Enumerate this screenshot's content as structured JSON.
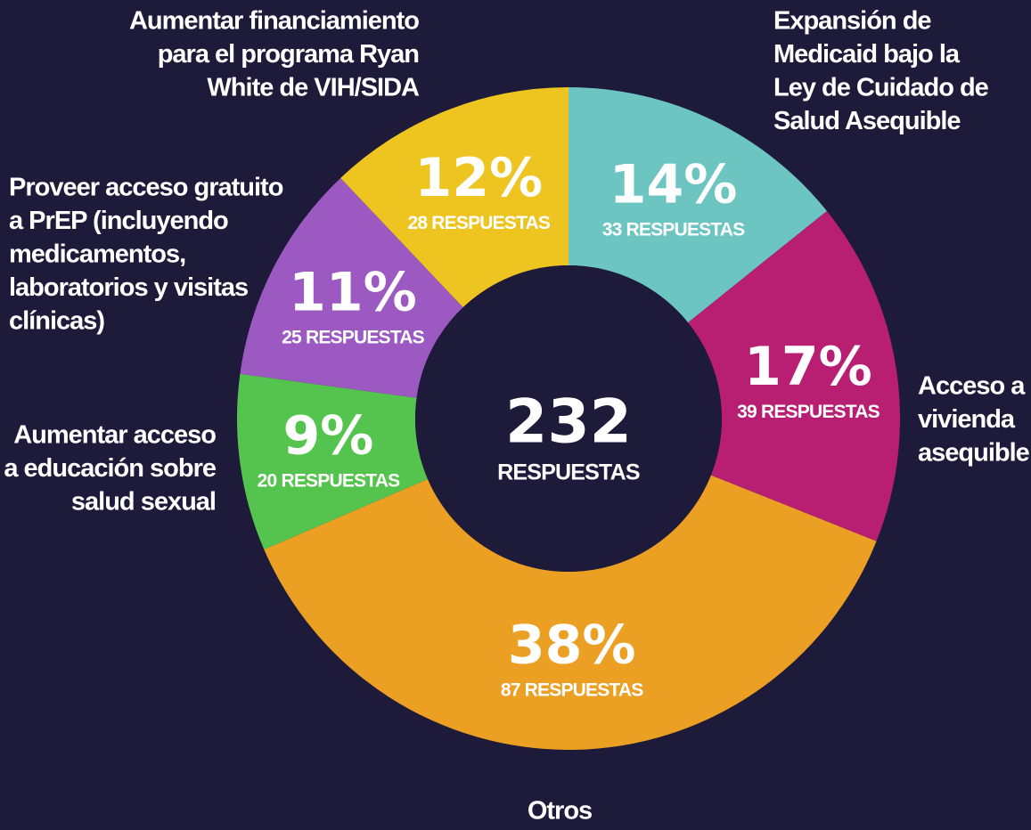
{
  "chart_data": {
    "type": "donut",
    "labels": [
      [
        "Expansión de",
        "Medicaid bajo la",
        "Ley de Cuidado de",
        "Salud Asequible"
      ],
      [
        "Acceso a",
        "vivienda",
        "asequible"
      ],
      [
        "Otros"
      ],
      [
        "Aumentar acceso",
        "a educación sobre",
        "salud sexual"
      ],
      [
        "Proveer acceso gratuito",
        "a PrEP (incluyendo",
        "medicamentos,",
        "laboratorios y visitas",
        "clínicas)"
      ],
      [
        "Aumentar financiamiento",
        "para el programa Ryan",
        "White de VIH/SIDA"
      ]
    ],
    "values": [
      14,
      17,
      38,
      9,
      11,
      12
    ],
    "value_labels": [
      "14%",
      "17%",
      "38%",
      "9%",
      "11%",
      "12%"
    ],
    "counts": [
      33,
      39,
      87,
      20,
      25,
      28
    ],
    "count_labels": [
      "33 RESPUESTAS",
      "39 RESPUESTAS",
      "87 RESPUESTAS",
      "20 RESPUESTAS",
      "25 RESPUESTAS",
      "28 RESPUESTAS"
    ],
    "colors": [
      "#6cc5c0",
      "#b81f72",
      "#eba024",
      "#55c44e",
      "#9b59c1",
      "#eec520"
    ],
    "total": 232,
    "total_label": "RESPUESTAS"
  }
}
